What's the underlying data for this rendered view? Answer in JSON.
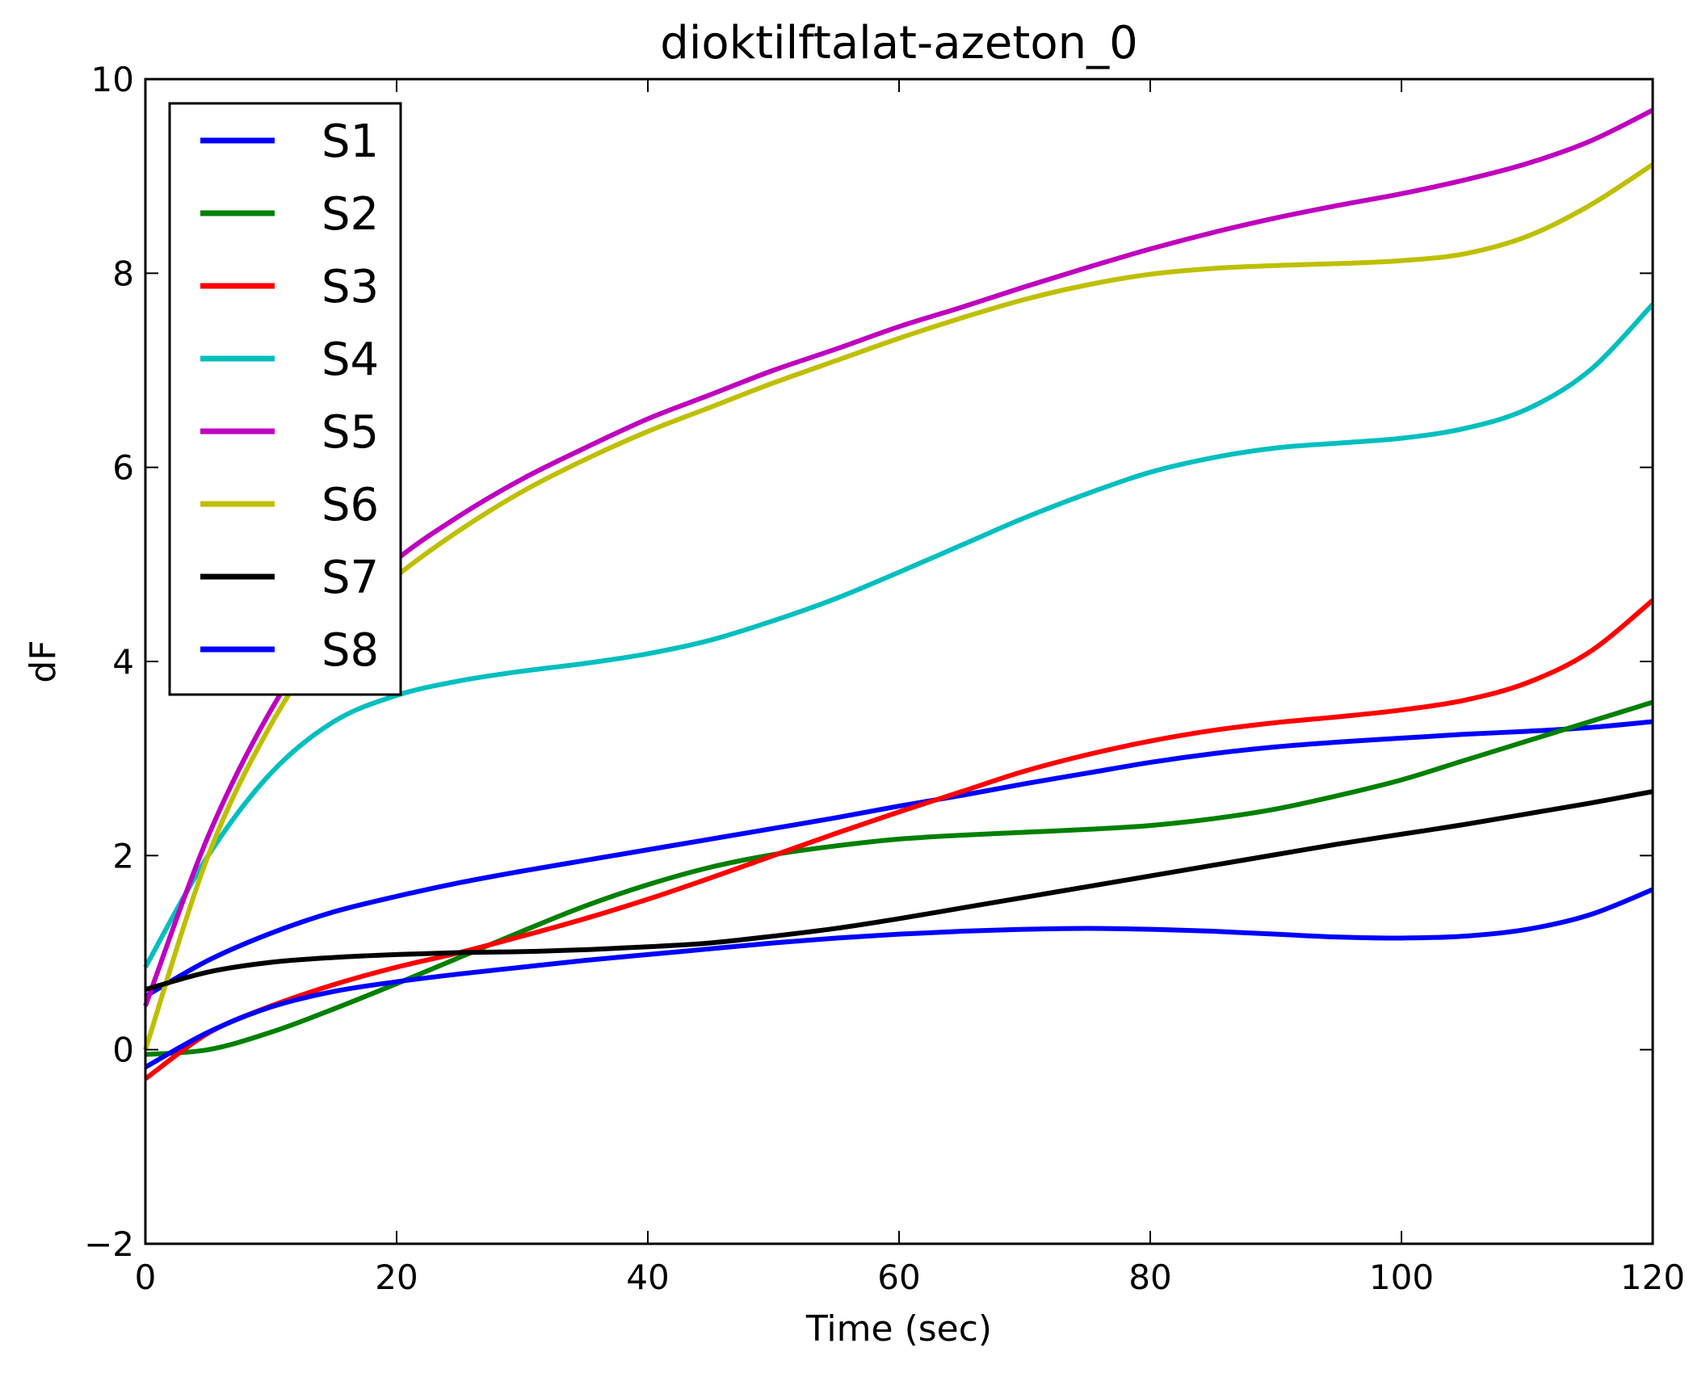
{
  "chart_data": {
    "type": "line",
    "title": "dioktilftalat-azeton_0",
    "xlabel": "Time (sec)",
    "ylabel": "dF",
    "xlim": [
      0,
      120
    ],
    "ylim": [
      -2,
      10
    ],
    "xticks": [
      0,
      20,
      40,
      60,
      80,
      100,
      120
    ],
    "yticks": [
      -2,
      0,
      2,
      4,
      6,
      8,
      10
    ],
    "xtick_labels": [
      "0",
      "20",
      "40",
      "60",
      "80",
      "100",
      "120"
    ],
    "ytick_labels": [
      "−2",
      "0",
      "2",
      "4",
      "6",
      "8",
      "10"
    ],
    "grid": false,
    "legend_position": "upper-left",
    "x": [
      0,
      5,
      10,
      15,
      20,
      25,
      30,
      35,
      40,
      45,
      50,
      55,
      60,
      65,
      70,
      75,
      80,
      85,
      90,
      95,
      100,
      105,
      110,
      115,
      120
    ],
    "series": [
      {
        "name": "S1",
        "color": "#0000ff",
        "values": [
          0.55,
          0.92,
          1.2,
          1.42,
          1.58,
          1.72,
          1.84,
          1.95,
          2.06,
          2.17,
          2.28,
          2.39,
          2.51,
          2.62,
          2.74,
          2.85,
          2.96,
          3.05,
          3.12,
          3.17,
          3.21,
          3.25,
          3.28,
          3.32,
          3.38
        ]
      },
      {
        "name": "S2",
        "color": "#008000",
        "values": [
          -0.05,
          0.0,
          0.18,
          0.42,
          0.68,
          0.95,
          1.22,
          1.48,
          1.7,
          1.88,
          2.01,
          2.1,
          2.17,
          2.21,
          2.24,
          2.27,
          2.31,
          2.38,
          2.48,
          2.62,
          2.78,
          2.98,
          3.18,
          3.38,
          3.58
        ]
      },
      {
        "name": "S3",
        "color": "#ff0000",
        "values": [
          -0.3,
          0.17,
          0.45,
          0.67,
          0.85,
          1.0,
          1.17,
          1.35,
          1.55,
          1.77,
          2.0,
          2.23,
          2.45,
          2.66,
          2.87,
          3.04,
          3.18,
          3.29,
          3.37,
          3.43,
          3.5,
          3.6,
          3.78,
          4.1,
          4.63
        ]
      },
      {
        "name": "S4",
        "color": "#00bfbf",
        "values": [
          0.85,
          2.0,
          2.85,
          3.38,
          3.65,
          3.8,
          3.9,
          3.98,
          4.08,
          4.22,
          4.42,
          4.65,
          4.92,
          5.2,
          5.48,
          5.73,
          5.95,
          6.1,
          6.2,
          6.25,
          6.3,
          6.4,
          6.6,
          7.0,
          7.68
        ]
      },
      {
        "name": "S5",
        "color": "#bf00bf",
        "values": [
          0.45,
          2.2,
          3.5,
          4.45,
          5.05,
          5.5,
          5.88,
          6.2,
          6.5,
          6.75,
          7.0,
          7.22,
          7.45,
          7.65,
          7.86,
          8.06,
          8.25,
          8.42,
          8.57,
          8.7,
          8.82,
          8.96,
          9.13,
          9.36,
          9.68
        ]
      },
      {
        "name": "S6",
        "color": "#bfbf00",
        "values": [
          0.0,
          2.0,
          3.35,
          4.3,
          4.88,
          5.35,
          5.75,
          6.08,
          6.37,
          6.62,
          6.87,
          7.1,
          7.33,
          7.54,
          7.73,
          7.88,
          7.99,
          8.05,
          8.08,
          8.1,
          8.13,
          8.2,
          8.38,
          8.7,
          9.12
        ]
      },
      {
        "name": "S7",
        "color": "#000000",
        "values": [
          0.62,
          0.8,
          0.9,
          0.95,
          0.98,
          1.0,
          1.01,
          1.03,
          1.06,
          1.1,
          1.17,
          1.25,
          1.35,
          1.46,
          1.57,
          1.68,
          1.79,
          1.9,
          2.01,
          2.12,
          2.22,
          2.32,
          2.43,
          2.54,
          2.66
        ]
      },
      {
        "name": "S8",
        "color": "#0000ff",
        "values": [
          -0.18,
          0.18,
          0.44,
          0.6,
          0.7,
          0.78,
          0.85,
          0.92,
          0.98,
          1.04,
          1.1,
          1.15,
          1.19,
          1.22,
          1.24,
          1.25,
          1.24,
          1.22,
          1.19,
          1.16,
          1.15,
          1.17,
          1.24,
          1.39,
          1.65
        ]
      }
    ]
  }
}
